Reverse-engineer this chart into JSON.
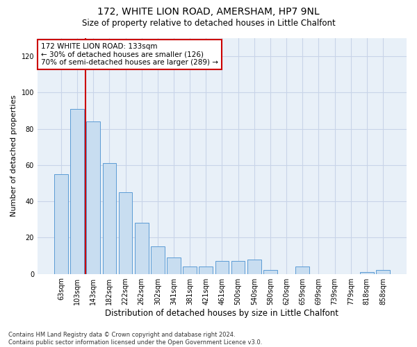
{
  "title1": "172, WHITE LION ROAD, AMERSHAM, HP7 9NL",
  "title2": "Size of property relative to detached houses in Little Chalfont",
  "xlabel": "Distribution of detached houses by size in Little Chalfont",
  "ylabel": "Number of detached properties",
  "categories": [
    "63sqm",
    "103sqm",
    "143sqm",
    "182sqm",
    "222sqm",
    "262sqm",
    "302sqm",
    "341sqm",
    "381sqm",
    "421sqm",
    "461sqm",
    "500sqm",
    "540sqm",
    "580sqm",
    "620sqm",
    "659sqm",
    "699sqm",
    "739sqm",
    "779sqm",
    "818sqm",
    "858sqm"
  ],
  "values": [
    55,
    91,
    84,
    61,
    45,
    28,
    15,
    9,
    4,
    4,
    7,
    7,
    8,
    2,
    0,
    4,
    0,
    0,
    0,
    1,
    2
  ],
  "bar_color": "#c8ddf0",
  "bar_edge_color": "#5b9bd5",
  "bar_width": 0.85,
  "vline_x": 1.5,
  "vline_color": "#cc0000",
  "annotation_text": "172 WHITE LION ROAD: 133sqm\n← 30% of detached houses are smaller (126)\n70% of semi-detached houses are larger (289) →",
  "annotation_box_color": "#ffffff",
  "annotation_box_edge_color": "#cc0000",
  "ylim": [
    0,
    130
  ],
  "yticks": [
    0,
    20,
    40,
    60,
    80,
    100,
    120
  ],
  "grid_color": "#c8d4e8",
  "background_color": "#e8f0f8",
  "footer_text": "Contains HM Land Registry data © Crown copyright and database right 2024.\nContains public sector information licensed under the Open Government Licence v3.0.",
  "fig_width": 6.0,
  "fig_height": 5.0,
  "title1_fontsize": 10,
  "title2_fontsize": 8.5,
  "xlabel_fontsize": 8.5,
  "ylabel_fontsize": 8,
  "tick_fontsize": 7,
  "annotation_fontsize": 7.5,
  "footer_fontsize": 6
}
